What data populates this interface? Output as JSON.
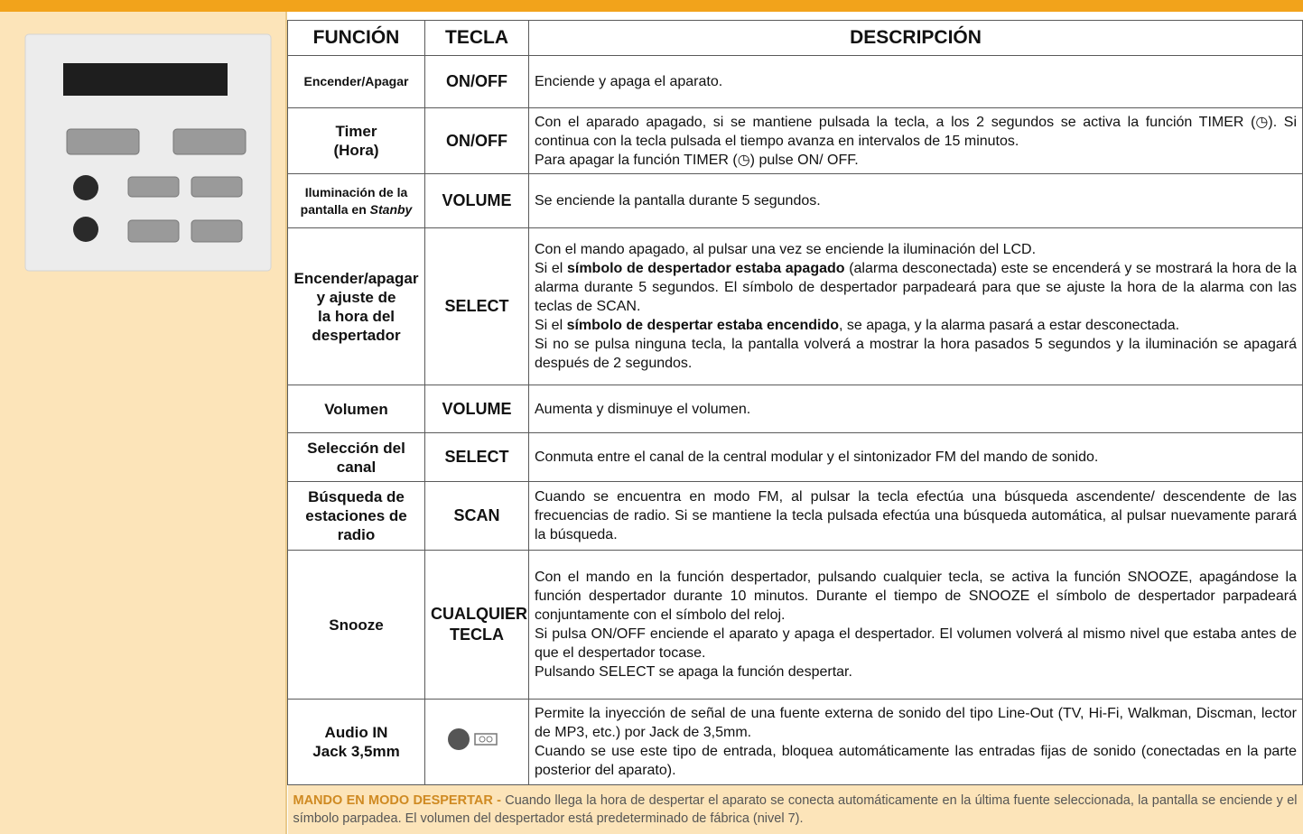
{
  "table": {
    "headers": [
      "FUNCIÓN",
      "TECLA",
      "DESCRIPCIÓN"
    ],
    "rows": [
      {
        "function": [
          "Encender/Apagar"
        ],
        "key": [
          "ON/OFF"
        ],
        "description": [
          "Enciende y apaga el aparato."
        ]
      },
      {
        "function": [
          "Timer",
          "(Hora)"
        ],
        "key": [
          "ON/OFF"
        ],
        "description": [
          "Con el aparado apagado, si se mantiene pulsada la tecla, a los 2 segundos se activa la función TIMER (◷). Si continua con la tecla pulsada el tiempo avanza en intervalos de 15 minutos.",
          "Para apagar la función TIMER (◷) pulse ON/ OFF."
        ]
      },
      {
        "function": [
          "Iluminación de la",
          [
            "pantalla en ",
            {
              "italic": "Stanby"
            }
          ]
        ],
        "key": [
          "VOLUME"
        ],
        "description": [
          "Se enciende la pantalla durante 5 segundos."
        ]
      },
      {
        "function": [
          "Encender/apagar",
          "y ajuste de",
          "la hora del",
          "despertador"
        ],
        "key": [
          "SELECT"
        ],
        "description": [
          "Con el mando apagado, al pulsar una vez se enciende la iluminación del LCD.",
          [
            "Si el ",
            {
              "bold": "símbolo de despertador estaba apagado"
            },
            " (alarma desconectada) este se encenderá y se mostrará la hora de la alarma durante 5 segundos. El símbolo de despertador parpadeará para que se ajuste la hora de la alarma con las teclas de SCAN."
          ],
          [
            "Si el ",
            {
              "bold": "símbolo de despertar estaba encendido"
            },
            ", se apaga, y la alarma pasará a estar desconectada."
          ],
          "Si no se pulsa ninguna tecla, la pantalla volverá a mostrar la hora pasados 5 segundos y la iluminación se apagará después de 2 segundos."
        ]
      },
      {
        "function": [
          "Volumen"
        ],
        "key": [
          "VOLUME"
        ],
        "description": [
          "Aumenta y disminuye el volumen."
        ]
      },
      {
        "function": [
          "Selección del",
          "canal"
        ],
        "key": [
          "SELECT"
        ],
        "description": [
          "Conmuta entre el canal de la central modular y el sintonizador FM del mando de sonido."
        ]
      },
      {
        "function": [
          "Búsqueda de",
          "estaciones de",
          "radio"
        ],
        "key": [
          "SCAN"
        ],
        "description": [
          "Cuando se encuentra en modo FM, al pulsar la tecla efectúa una búsqueda ascendente/ descendente de las frecuencias de radio. Si se mantiene la tecla pulsada efectúa una búsqueda automática, al pulsar nuevamente parará la búsqueda."
        ]
      },
      {
        "function": [
          "Snooze"
        ],
        "key": [
          "CUALQUIER",
          "TECLA"
        ],
        "description": [
          "Con el mando en la función despertador, pulsando cualquier tecla, se activa la función SNOOZE, apagándose la función despertador durante 10 minutos. Durante el tiempo de SNOOZE el símbolo de despertador parpadeará conjuntamente con el símbolo del reloj.",
          "Si pulsa ON/OFF enciende el aparato y apaga el despertador. El volumen volverá al mismo nivel que estaba antes de que el despertador tocase.",
          "Pulsando SELECT se apaga la función despertar."
        ]
      },
      {
        "function": [
          "Audio IN",
          "Jack 3,5mm"
        ],
        "description": [
          "Permite la inyección de señal de una fuente externa de sonido del tipo Line-Out (TV, Hi-Fi, Walkman, Discman, lector de MP3, etc.) por Jack de 3,5mm.",
          "Cuando se use este tipo de entrada, bloquea automáticamente las entradas fijas de sonido (conectadas en la parte posterior del aparato)."
        ]
      }
    ],
    "footer": [
      {
        "bold": "MANDO EN MODO DESPERTAR -"
      },
      " Cuando llega la hora de despertar el aparato se conecta automáticamente en la última fuente seleccionada, la pantalla se enciende y el símbolo parpadea. El volumen del despertador está predeterminado de fábrica (nivel 7)."
    ]
  }
}
